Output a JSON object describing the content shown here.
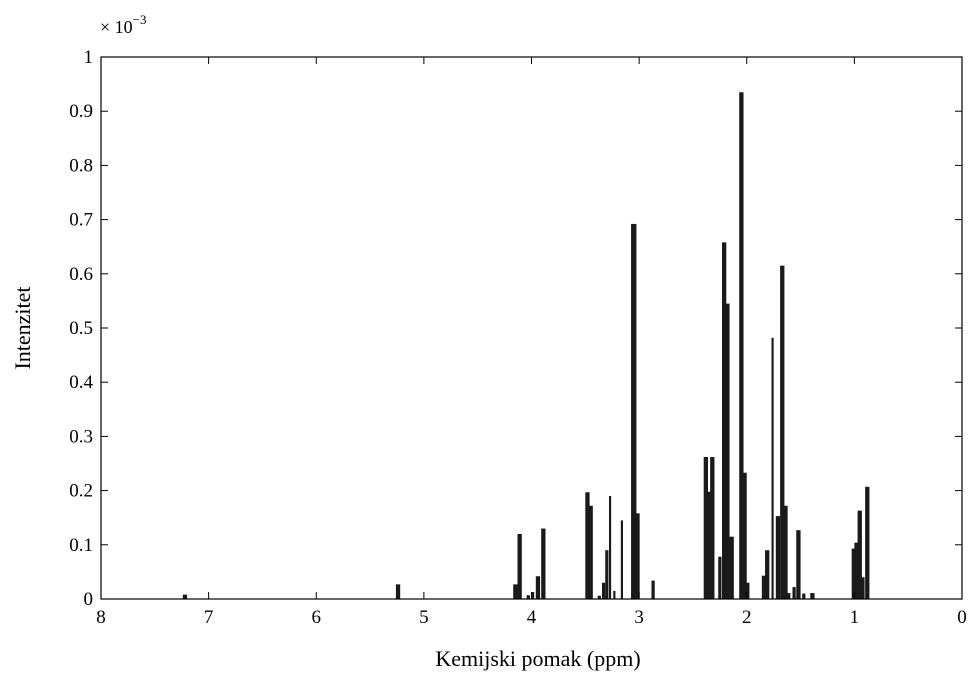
{
  "chart_data": {
    "type": "bar",
    "xlabel": "Kemijski pomak (ppm)",
    "ylabel": "Intenzitet",
    "y_exponent_label": "× 10",
    "y_exponent_power": "−3",
    "xlim": [
      8,
      0
    ],
    "ylim": [
      0,
      1
    ],
    "x_reversed": true,
    "grid": false,
    "xticks": [
      {
        "value": 8,
        "label": "8"
      },
      {
        "value": 7,
        "label": "7"
      },
      {
        "value": 6,
        "label": "6"
      },
      {
        "value": 5,
        "label": "5"
      },
      {
        "value": 4,
        "label": "4"
      },
      {
        "value": 3,
        "label": "3"
      },
      {
        "value": 2,
        "label": "2"
      },
      {
        "value": 1,
        "label": "1"
      },
      {
        "value": 0,
        "label": "0"
      }
    ],
    "yticks": [
      {
        "value": 0,
        "label": "0"
      },
      {
        "value": 0.1,
        "label": "0.1"
      },
      {
        "value": 0.2,
        "label": "0.2"
      },
      {
        "value": 0.3,
        "label": "0.3"
      },
      {
        "value": 0.4,
        "label": "0.4"
      },
      {
        "value": 0.5,
        "label": "0.5"
      },
      {
        "value": 0.6,
        "label": "0.6"
      },
      {
        "value": 0.7,
        "label": "0.7"
      },
      {
        "value": 0.8,
        "label": "0.8"
      },
      {
        "value": 0.9,
        "label": "0.9"
      },
      {
        "value": 1,
        "label": "1"
      }
    ],
    "bar_color": "#1a1a1a",
    "x": [
      7.22,
      5.24,
      4.15,
      4.11,
      4.03,
      3.99,
      3.94,
      3.89,
      3.48,
      3.45,
      3.37,
      3.33,
      3.3,
      3.27,
      3.23,
      3.16,
      3.05,
      3.02,
      2.87,
      2.38,
      2.35,
      2.32,
      2.25,
      2.21,
      2.18,
      2.14,
      2.05,
      2.02,
      1.99,
      1.84,
      1.81,
      1.76,
      1.71,
      1.67,
      1.64,
      1.61,
      1.56,
      1.52,
      1.47,
      1.39,
      1.01,
      0.98,
      0.95,
      0.92,
      0.88
    ],
    "values": [
      0.008,
      0.027,
      0.027,
      0.12,
      0.007,
      0.013,
      0.042,
      0.13,
      0.197,
      0.172,
      0.006,
      0.03,
      0.09,
      0.19,
      0.015,
      0.145,
      0.692,
      0.158,
      0.034,
      0.262,
      0.198,
      0.262,
      0.078,
      0.658,
      0.545,
      0.115,
      0.935,
      0.233,
      0.03,
      0.043,
      0.09,
      0.482,
      0.153,
      0.615,
      0.172,
      0.011,
      0.022,
      0.127,
      0.01,
      0.011,
      0.093,
      0.104,
      0.163,
      0.04,
      0.207
    ],
    "widths": [
      0.04,
      0.04,
      0.04,
      0.04,
      0.03,
      0.03,
      0.04,
      0.04,
      0.04,
      0.04,
      0.03,
      0.03,
      0.03,
      0.02,
      0.02,
      0.02,
      0.05,
      0.05,
      0.03,
      0.04,
      0.03,
      0.04,
      0.03,
      0.04,
      0.04,
      0.04,
      0.04,
      0.04,
      0.03,
      0.04,
      0.04,
      0.02,
      0.04,
      0.04,
      0.04,
      0.03,
      0.03,
      0.04,
      0.03,
      0.04,
      0.03,
      0.04,
      0.04,
      0.03,
      0.04
    ]
  }
}
